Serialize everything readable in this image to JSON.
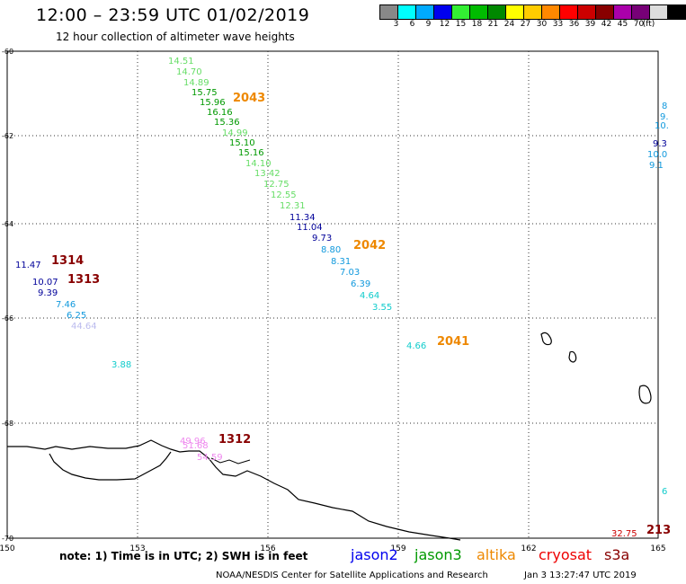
{
  "header": {
    "title": "12:00 – 23:59 UTC 01/02/2019",
    "subtitle": "12 hour collection of altimeter wave heights"
  },
  "legend": {
    "unit": "(ft)",
    "colors": [
      "#888888",
      "#00ffff",
      "#00aaff",
      "#0000ee",
      "#33ee33",
      "#00bb00",
      "#008800",
      "#ffff00",
      "#ffcc00",
      "#ff8800",
      "#ff0000",
      "#cc0000",
      "#880000",
      "#aa00aa",
      "#770077",
      "#dddddd",
      "#000000"
    ],
    "labels": [
      "3",
      "6",
      "9",
      "12",
      "15",
      "18",
      "21",
      "24",
      "27",
      "30",
      "33",
      "36",
      "39",
      "42",
      "45",
      "70"
    ]
  },
  "axes": {
    "y_labels": [
      "-60",
      "-62",
      "-64",
      "-66",
      "-68",
      "-70"
    ],
    "x_labels": [
      "150",
      "153",
      "156",
      "159",
      "162",
      "165"
    ]
  },
  "observations": [
    {
      "v": "14.51",
      "c": "#66dd66"
    },
    {
      "v": "14.70",
      "c": "#66dd66"
    },
    {
      "v": "14.89",
      "c": "#66dd66"
    },
    {
      "v": "15.75",
      "c": "#009900"
    },
    {
      "v": "15.96",
      "c": "#009900"
    },
    {
      "v": "16.16",
      "c": "#009900"
    },
    {
      "v": "15.36",
      "c": "#009900"
    },
    {
      "v": "14.99",
      "c": "#66dd66"
    },
    {
      "v": "15.10",
      "c": "#009900"
    },
    {
      "v": "15.16",
      "c": "#009900"
    },
    {
      "v": "14.10",
      "c": "#66dd66"
    },
    {
      "v": "13.42",
      "c": "#66dd66"
    },
    {
      "v": "12.75",
      "c": "#66dd66"
    },
    {
      "v": "12.55",
      "c": "#66dd66"
    },
    {
      "v": "12.31",
      "c": "#66dd66"
    },
    {
      "v": "11.34",
      "c": "#000099"
    },
    {
      "v": "11.04",
      "c": "#000099"
    },
    {
      "v": "9.73",
      "c": "#000099"
    },
    {
      "v": "8.80",
      "c": "#1199dd"
    },
    {
      "v": "8.31",
      "c": "#1199dd"
    },
    {
      "v": "7.03",
      "c": "#1199dd"
    },
    {
      "v": "6.39",
      "c": "#1199dd"
    },
    {
      "v": "4.64",
      "c": "#11cccc"
    },
    {
      "v": "3.55",
      "c": "#11cccc"
    },
    {
      "v": "11.47",
      "c": "#000099"
    },
    {
      "v": "10.07",
      "c": "#000099"
    },
    {
      "v": "9.39",
      "c": "#000099"
    },
    {
      "v": "7.46",
      "c": "#1199dd"
    },
    {
      "v": "6.25",
      "c": "#1199dd"
    },
    {
      "v": "44.64",
      "c": "#bbbbee"
    },
    {
      "v": "3.88",
      "c": "#11cccc"
    },
    {
      "v": "4.66",
      "c": "#11cccc"
    },
    {
      "v": "49.96",
      "c": "#ee88ee"
    },
    {
      "v": "51.68",
      "c": "#ee88ee"
    },
    {
      "v": "54.59",
      "c": "#ee88ee"
    },
    {
      "v": "32.75",
      "c": "#cc0000"
    },
    {
      "v": "8",
      "c": "#1199dd"
    },
    {
      "v": "9.",
      "c": "#1199dd"
    },
    {
      "v": "10.",
      "c": "#1199dd"
    },
    {
      "v": "9.3",
      "c": "#000099"
    },
    {
      "v": "10.0",
      "c": "#1199dd"
    },
    {
      "v": "9.1",
      "c": "#1199dd"
    },
    {
      "v": "6",
      "c": "#11cccc"
    }
  ],
  "pass_times": [
    {
      "t": "2043",
      "c": "#ee8800"
    },
    {
      "t": "2042",
      "c": "#ee8800"
    },
    {
      "t": "2041",
      "c": "#ee8800"
    },
    {
      "t": "1314",
      "c": "#880000"
    },
    {
      "t": "1313",
      "c": "#880000"
    },
    {
      "t": "1312",
      "c": "#880000"
    },
    {
      "t": "213",
      "c": "#880000"
    }
  ],
  "footer": {
    "note": "note:  1) Time is in UTC;  2) SWH is in feet",
    "satellites": [
      {
        "name": "jason2",
        "color": "#0000ee"
      },
      {
        "name": "jason3",
        "color": "#009900"
      },
      {
        "name": "altika",
        "color": "#ee8800"
      },
      {
        "name": "cryosat",
        "color": "#ee0000"
      },
      {
        "name": "s3a",
        "color": "#880000"
      }
    ],
    "credit": "NOAA/NESDIS Center for Satellite Applications and Research",
    "timestamp": "Jan  3 13:27:47 UTC 2019"
  }
}
